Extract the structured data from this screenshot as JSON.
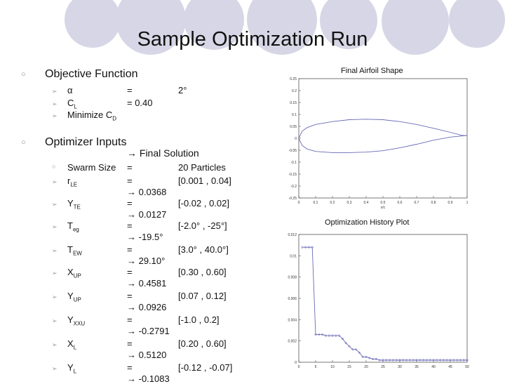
{
  "slide": {
    "title": "Sample Optimization Run"
  },
  "objective": {
    "heading": "Objective Function",
    "items": [
      {
        "sym": "α",
        "sub": "",
        "eq": "=",
        "val": "2°"
      },
      {
        "sym": "C",
        "sub": "L",
        "eq": "= 0.40",
        "val": ""
      },
      {
        "sym": "Minimize C",
        "sub": "D",
        "eq": "",
        "val": ""
      }
    ]
  },
  "optimizer": {
    "heading": "Optimizer Inputs",
    "final_label": "→ Final Solution",
    "swarm": {
      "label": "Swarm Size",
      "eq": "=",
      "value": "20 Particles"
    },
    "params": [
      {
        "name": "r",
        "sub": "LE",
        "eq": "=",
        "range": "[0.001 , 0.04]",
        "final": "→ 0.0368"
      },
      {
        "name": "Y",
        "sub": "TE",
        "eq": "=",
        "range": "[-0.02 , 0.02]",
        "final": "→ 0.0127"
      },
      {
        "name": "T",
        "sub": "eg",
        "eq": "=",
        "range": "[-2.0° , -25°]",
        "final": "→ -19.5°"
      },
      {
        "name": "T",
        "sub": "EW",
        "eq": "=",
        "range": "[3.0° , 40.0°]",
        "final": "→ 29.10°"
      },
      {
        "name": "X",
        "sub": "UP",
        "eq": "=",
        "range": "[0.30 , 0.60]",
        "final": "→ 0.4581"
      },
      {
        "name": "Y",
        "sub": "UP",
        "eq": "=",
        "range": "[0.07 , 0.12]",
        "final": "→ 0.0926"
      },
      {
        "name": "Y",
        "sub": "XXU",
        "eq": "=",
        "range": "[-1.0 , 0.2]",
        "final": "→ -0.2791"
      },
      {
        "name": "X",
        "sub": "L",
        "eq": "=",
        "range": "[0.20 , 0.60]",
        "final": "→ 0.5120"
      },
      {
        "name": "Y",
        "sub": "L",
        "eq": "=",
        "range": "[-0.12 , -0.07]",
        "final": "→ -0.1083"
      }
    ]
  },
  "chart_data": [
    {
      "type": "line",
      "title": "Final Airfoil Shape",
      "xlabel": "x/c",
      "xlim": [
        0,
        1
      ],
      "ylim": [
        -0.25,
        0.25
      ],
      "x_ticks": [
        "0",
        "0.1",
        "0.2",
        "0.3",
        "0.4",
        "0.5",
        "0.6",
        "0.7",
        "0.8",
        "0.9",
        "1"
      ],
      "y_ticks": [
        "0.25",
        "0.2",
        "0.15",
        "0.1",
        "0.05",
        "0",
        "-0.05",
        "-0.1",
        "-0.15",
        "-0.2",
        "-0.25"
      ],
      "series": [
        {
          "values": [
            [
              0,
              0.0
            ],
            [
              0.02,
              0.03
            ],
            [
              0.05,
              0.045
            ],
            [
              0.1,
              0.058
            ],
            [
              0.2,
              0.07
            ],
            [
              0.3,
              0.078
            ],
            [
              0.4,
              0.08
            ],
            [
              0.5,
              0.078
            ],
            [
              0.6,
              0.07
            ],
            [
              0.7,
              0.058
            ],
            [
              0.8,
              0.042
            ],
            [
              0.9,
              0.025
            ],
            [
              0.97,
              0.012
            ],
            [
              1.0,
              0.012
            ]
          ]
        },
        {
          "values": [
            [
              0,
              0.0
            ],
            [
              0.02,
              -0.03
            ],
            [
              0.05,
              -0.045
            ],
            [
              0.1,
              -0.055
            ],
            [
              0.2,
              -0.06
            ],
            [
              0.3,
              -0.06
            ],
            [
              0.4,
              -0.058
            ],
            [
              0.5,
              -0.052
            ],
            [
              0.6,
              -0.04
            ],
            [
              0.7,
              -0.025
            ],
            [
              0.8,
              -0.008
            ],
            [
              0.9,
              0.005
            ],
            [
              1.0,
              0.012
            ]
          ]
        }
      ]
    },
    {
      "type": "line",
      "title": "Optimization History Plot",
      "xlim": [
        0,
        50
      ],
      "ylim": [
        0,
        0.012
      ],
      "x_ticks": [
        "0",
        "5",
        "10",
        "15",
        "20",
        "25",
        "30",
        "35",
        "40",
        "45",
        "50"
      ],
      "y_ticks": [
        "0.012",
        "0.01",
        "0.008",
        "0.006",
        "0.004",
        "0.002",
        "0"
      ],
      "series": [
        {
          "values": [
            [
              1,
              0.0108
            ],
            [
              2,
              0.0108
            ],
            [
              3,
              0.0108
            ],
            [
              4,
              0.0108
            ],
            [
              5,
              0.0026
            ],
            [
              6,
              0.0026
            ],
            [
              7,
              0.0026
            ],
            [
              8,
              0.0025
            ],
            [
              9,
              0.0025
            ],
            [
              10,
              0.0025
            ],
            [
              11,
              0.0025
            ],
            [
              12,
              0.0025
            ],
            [
              13,
              0.0022
            ],
            [
              14,
              0.0018
            ],
            [
              15,
              0.0015
            ],
            [
              16,
              0.0012
            ],
            [
              17,
              0.0012
            ],
            [
              18,
              0.0009
            ],
            [
              19,
              0.0005
            ],
            [
              20,
              0.0005
            ],
            [
              21,
              0.0004
            ],
            [
              22,
              0.0003
            ],
            [
              23,
              0.0003
            ],
            [
              24,
              0.0002
            ],
            [
              25,
              0.0002
            ],
            [
              26,
              0.0002
            ],
            [
              27,
              0.0002
            ],
            [
              28,
              0.0002
            ],
            [
              29,
              0.0002
            ],
            [
              30,
              0.0002
            ],
            [
              31,
              0.0002
            ],
            [
              32,
              0.0002
            ],
            [
              33,
              0.0002
            ],
            [
              34,
              0.0002
            ],
            [
              35,
              0.0002
            ],
            [
              36,
              0.0002
            ],
            [
              37,
              0.0002
            ],
            [
              38,
              0.0002
            ],
            [
              39,
              0.0002
            ],
            [
              40,
              0.0002
            ],
            [
              41,
              0.0002
            ],
            [
              42,
              0.0002
            ],
            [
              43,
              0.0002
            ],
            [
              44,
              0.0002
            ],
            [
              45,
              0.0002
            ],
            [
              46,
              0.0002
            ],
            [
              47,
              0.0002
            ],
            [
              48,
              0.0002
            ],
            [
              49,
              0.0002
            ],
            [
              50,
              0.0002
            ]
          ]
        }
      ]
    }
  ]
}
